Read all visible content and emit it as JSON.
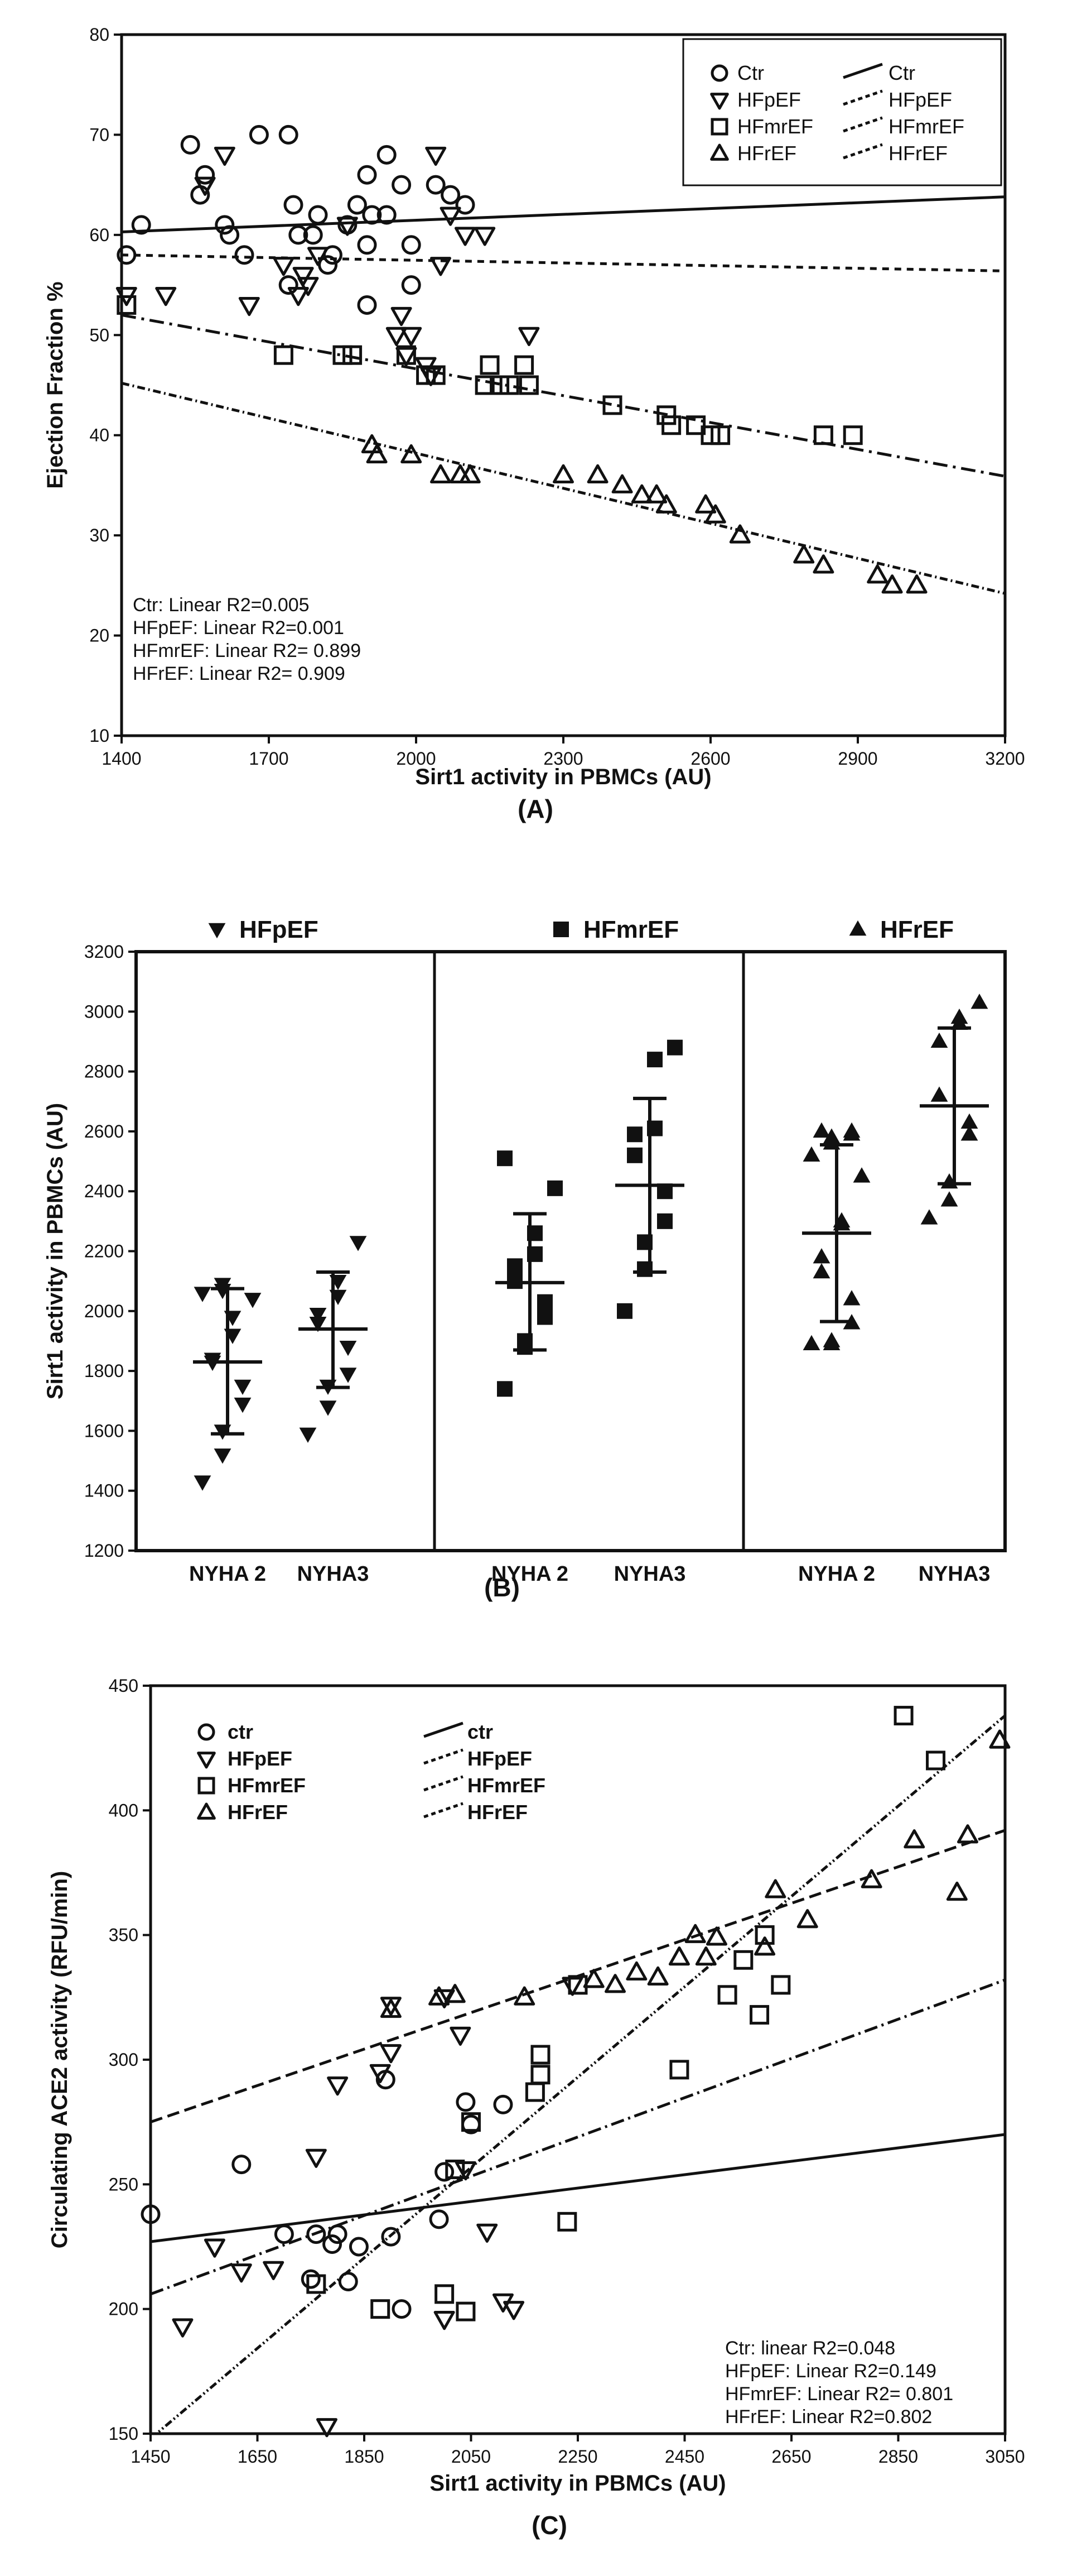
{
  "figure": {
    "label_a": "(A)",
    "label_b": "(B)",
    "label_c": "(C)"
  },
  "chart_data": [
    {
      "type": "scatter",
      "panel": "A",
      "xlabel": "Sirt1 activity in PBMCs (AU)",
      "ylabel": "Ejection Fraction %",
      "xlim": [
        1400,
        3200
      ],
      "ylim": [
        10,
        80
      ],
      "x_ticks": [
        1400,
        1700,
        2000,
        2300,
        2600,
        2900,
        3200
      ],
      "y_ticks": [
        10,
        20,
        30,
        40,
        50,
        60,
        70,
        80
      ],
      "legend_position": "top-right",
      "annotations": [
        "Ctr: Linear R2=0.005",
        "HFpEF: Linear R2=0.001",
        "HFmrEF: Linear R2= 0.899",
        "HFrEF: Linear R2= 0.909"
      ],
      "series": [
        {
          "name": "Ctr",
          "marker": "circle",
          "line_label": "Ctr",
          "dash": "solid",
          "fit": [
            [
              1400,
              60.3
            ],
            [
              3200,
              63.8
            ]
          ],
          "points": [
            [
              1410,
              58
            ],
            [
              1440,
              61
            ],
            [
              1540,
              69
            ],
            [
              1560,
              64
            ],
            [
              1570,
              66
            ],
            [
              1610,
              61
            ],
            [
              1620,
              60
            ],
            [
              1650,
              58
            ],
            [
              1680,
              70
            ],
            [
              1740,
              70
            ],
            [
              1750,
              63
            ],
            [
              1790,
              60
            ],
            [
              1800,
              62
            ],
            [
              1820,
              57
            ],
            [
              1830,
              58
            ],
            [
              1860,
              61
            ],
            [
              1880,
              63
            ],
            [
              1900,
              59
            ],
            [
              1900,
              66
            ],
            [
              1910,
              62
            ],
            [
              1940,
              62
            ],
            [
              1940,
              68
            ],
            [
              1970,
              65
            ],
            [
              1990,
              59
            ],
            [
              1990,
              55
            ],
            [
              2040,
              65
            ],
            [
              2070,
              64
            ],
            [
              2100,
              63
            ],
            [
              1740,
              55
            ],
            [
              1760,
              60
            ],
            [
              1900,
              53
            ]
          ]
        },
        {
          "name": "HFpEF",
          "marker": "triangle-down",
          "line_label": "HFpEF",
          "dash": "12 10",
          "fit": [
            [
              1400,
              58.0
            ],
            [
              3200,
              56.4
            ]
          ],
          "points": [
            [
              1410,
              54
            ],
            [
              1490,
              54
            ],
            [
              1570,
              65
            ],
            [
              1610,
              68
            ],
            [
              1660,
              53
            ],
            [
              1730,
              57
            ],
            [
              1760,
              54
            ],
            [
              1770,
              56
            ],
            [
              1780,
              55
            ],
            [
              1800,
              58
            ],
            [
              1860,
              61
            ],
            [
              1960,
              50
            ],
            [
              1970,
              52
            ],
            [
              1980,
              48
            ],
            [
              2040,
              68
            ],
            [
              2050,
              57
            ],
            [
              2070,
              62
            ],
            [
              2100,
              60
            ],
            [
              2140,
              60
            ],
            [
              2230,
              50
            ],
            [
              1990,
              50
            ],
            [
              2020,
              47
            ],
            [
              2030,
              46
            ]
          ]
        },
        {
          "name": "HFmrEF",
          "marker": "square",
          "line_label": "HFmrEF",
          "dash": "26 10 5 10",
          "fit": [
            [
              1400,
              52.0
            ],
            [
              3200,
              35.9
            ]
          ],
          "points": [
            [
              1410,
              53
            ],
            [
              1730,
              48
            ],
            [
              1850,
              48
            ],
            [
              1870,
              48
            ],
            [
              1980,
              48
            ],
            [
              2020,
              46
            ],
            [
              2040,
              46
            ],
            [
              2140,
              45
            ],
            [
              2150,
              47
            ],
            [
              2170,
              45
            ],
            [
              2190,
              45
            ],
            [
              2220,
              47
            ],
            [
              2230,
              45
            ],
            [
              2400,
              43
            ],
            [
              2510,
              42
            ],
            [
              2520,
              41
            ],
            [
              2570,
              41
            ],
            [
              2600,
              40
            ],
            [
              2620,
              40
            ],
            [
              2830,
              40
            ],
            [
              2890,
              40
            ]
          ]
        },
        {
          "name": "HFrEF",
          "marker": "triangle-up",
          "line_label": "HFrEF",
          "dash": "14 6 3 6",
          "fit": [
            [
              1400,
              45.2
            ],
            [
              3200,
              24.2
            ]
          ],
          "points": [
            [
              1910,
              39
            ],
            [
              1920,
              38
            ],
            [
              1990,
              38
            ],
            [
              2050,
              36
            ],
            [
              2090,
              36
            ],
            [
              2110,
              36
            ],
            [
              2300,
              36
            ],
            [
              2370,
              36
            ],
            [
              2420,
              35
            ],
            [
              2460,
              34
            ],
            [
              2490,
              34
            ],
            [
              2510,
              33
            ],
            [
              2590,
              33
            ],
            [
              2610,
              32
            ],
            [
              2660,
              30
            ],
            [
              2790,
              28
            ],
            [
              2830,
              27
            ],
            [
              2940,
              26
            ],
            [
              2970,
              25
            ],
            [
              3020,
              25
            ]
          ]
        }
      ]
    },
    {
      "type": "scatter",
      "panel": "B",
      "ylabel": "Sirt1 activity  in PBMCs (AU)",
      "ylim": [
        1200,
        3200
      ],
      "y_ticks": [
        1200,
        1400,
        1600,
        1800,
        2000,
        2200,
        2400,
        2600,
        2800,
        3000,
        3200
      ],
      "groups": [
        {
          "name": "HFpEF",
          "marker": "triangle-down",
          "categories": [
            "NYHA 2",
            "NYHA3"
          ],
          "mean": [
            1830,
            1940
          ],
          "sd_low": [
            1590,
            1745
          ],
          "sd_high": [
            2075,
            2130
          ],
          "points": [
            [
              1430,
              1520,
              1600,
              1690,
              1750,
              1830,
              1840,
              1920,
              1980,
              2040,
              2060,
              2070,
              2090
            ],
            [
              1590,
              1680,
              1750,
              1790,
              1880,
              1960,
              1990,
              2050,
              2100,
              2230
            ]
          ]
        },
        {
          "name": "HFmrEF",
          "marker": "square",
          "categories": [
            "NYHA 2",
            "NYHA3"
          ],
          "mean": [
            2095,
            2420
          ],
          "sd_low": [
            1870,
            2130
          ],
          "sd_high": [
            2325,
            2710
          ],
          "points": [
            [
              1740,
              1880,
              1900,
              1980,
              2030,
              2100,
              2150,
              2190,
              2260,
              2410,
              2510
            ],
            [
              2000,
              2140,
              2230,
              2300,
              2400,
              2520,
              2590,
              2610,
              2840,
              2880
            ]
          ]
        },
        {
          "name": "HFrEF",
          "marker": "triangle-up",
          "categories": [
            "NYHA 2",
            "NYHA3"
          ],
          "mean": [
            2260,
            2685
          ],
          "sd_low": [
            1965,
            2425
          ],
          "sd_high": [
            2555,
            2945
          ],
          "points": [
            [
              1890,
              1890,
              1900,
              1960,
              2040,
              2130,
              2180,
              2290,
              2300,
              2450,
              2520,
              2560,
              2580,
              2590,
              2600,
              2600
            ],
            [
              2310,
              2370,
              2430,
              2590,
              2630,
              2720,
              2900,
              2960,
              2980,
              3030
            ]
          ]
        }
      ]
    },
    {
      "type": "scatter",
      "panel": "C",
      "xlabel": "Sirt1 activity in PBMCs (AU)",
      "ylabel": "Circulating ACE2 activity (RFU/min)",
      "xlim": [
        1450,
        3050
      ],
      "ylim": [
        150,
        450
      ],
      "x_ticks": [
        1450,
        1650,
        1850,
        2050,
        2250,
        2450,
        2650,
        2850,
        3050
      ],
      "y_ticks": [
        150,
        200,
        250,
        300,
        350,
        400,
        450
      ],
      "legend_position": "top-left",
      "annotations": [
        "Ctr: linear R2=0.048",
        "HFpEF: Linear R2=0.149",
        "HFmrEF: Linear R2= 0.801",
        "HFrEF: Linear R2=0.802"
      ],
      "series": [
        {
          "name": "ctr",
          "marker": "circle",
          "line_label": "ctr",
          "dash": "solid",
          "fit": [
            [
              1450,
              227
            ],
            [
              3050,
              270
            ]
          ],
          "points": [
            [
              1450,
              238
            ],
            [
              1620,
              258
            ],
            [
              1700,
              230
            ],
            [
              1750,
              212
            ],
            [
              1760,
              230
            ],
            [
              1790,
              226
            ],
            [
              1800,
              230
            ],
            [
              1820,
              211
            ],
            [
              1840,
              225
            ],
            [
              1890,
              292
            ],
            [
              1900,
              229
            ],
            [
              1920,
              200
            ],
            [
              1990,
              236
            ],
            [
              2000,
              255
            ],
            [
              2040,
              283
            ],
            [
              2050,
              274
            ],
            [
              2110,
              282
            ]
          ]
        },
        {
          "name": "HFpEF",
          "marker": "triangle-down",
          "line_label": "HFpEF",
          "dash": "24 8 4 8",
          "fit": [
            [
              1450,
              206
            ],
            [
              3050,
              332
            ]
          ],
          "points": [
            [
              1510,
              193
            ],
            [
              1570,
              225
            ],
            [
              1620,
              215
            ],
            [
              1680,
              216
            ],
            [
              1760,
              261
            ],
            [
              1780,
              153
            ],
            [
              1800,
              290
            ],
            [
              1880,
              295
            ],
            [
              1900,
              322
            ],
            [
              1900,
              303
            ],
            [
              2000,
              325
            ],
            [
              2000,
              196
            ],
            [
              2030,
              310
            ],
            [
              2040,
              256
            ],
            [
              2080,
              231
            ],
            [
              2110,
              203
            ],
            [
              2130,
              200
            ],
            [
              2240,
              330
            ]
          ]
        },
        {
          "name": "HFmrEF",
          "marker": "square",
          "line_label": "HFmrEF",
          "dash": "14 5 3 5 3 5",
          "fit": [
            [
              1450,
              148
            ],
            [
              3050,
              438
            ]
          ],
          "points": [
            [
              1760,
              210
            ],
            [
              1880,
              200
            ],
            [
              2000,
              206
            ],
            [
              2020,
              256
            ],
            [
              2040,
              199
            ],
            [
              2050,
              275
            ],
            [
              2170,
              287
            ],
            [
              2180,
              294
            ],
            [
              2180,
              302
            ],
            [
              2230,
              235
            ],
            [
              2250,
              330
            ],
            [
              2440,
              296
            ],
            [
              2530,
              326
            ],
            [
              2560,
              340
            ],
            [
              2590,
              318
            ],
            [
              2600,
              350
            ],
            [
              2630,
              330
            ],
            [
              2860,
              438
            ],
            [
              2920,
              420
            ]
          ]
        },
        {
          "name": "HFrEF",
          "marker": "triangle-up",
          "line_label": "HFrEF",
          "dash": "22 10",
          "fit": [
            [
              1450,
              275
            ],
            [
              3050,
              392
            ]
          ],
          "points": [
            [
              1900,
              320
            ],
            [
              1990,
              325
            ],
            [
              2020,
              326
            ],
            [
              2150,
              325
            ],
            [
              2280,
              332
            ],
            [
              2320,
              330
            ],
            [
              2360,
              335
            ],
            [
              2400,
              333
            ],
            [
              2440,
              341
            ],
            [
              2470,
              350
            ],
            [
              2490,
              341
            ],
            [
              2510,
              349
            ],
            [
              2600,
              345
            ],
            [
              2620,
              368
            ],
            [
              2680,
              356
            ],
            [
              2800,
              372
            ],
            [
              2880,
              388
            ],
            [
              2960,
              367
            ],
            [
              2980,
              390
            ],
            [
              3040,
              428
            ]
          ]
        }
      ]
    }
  ]
}
